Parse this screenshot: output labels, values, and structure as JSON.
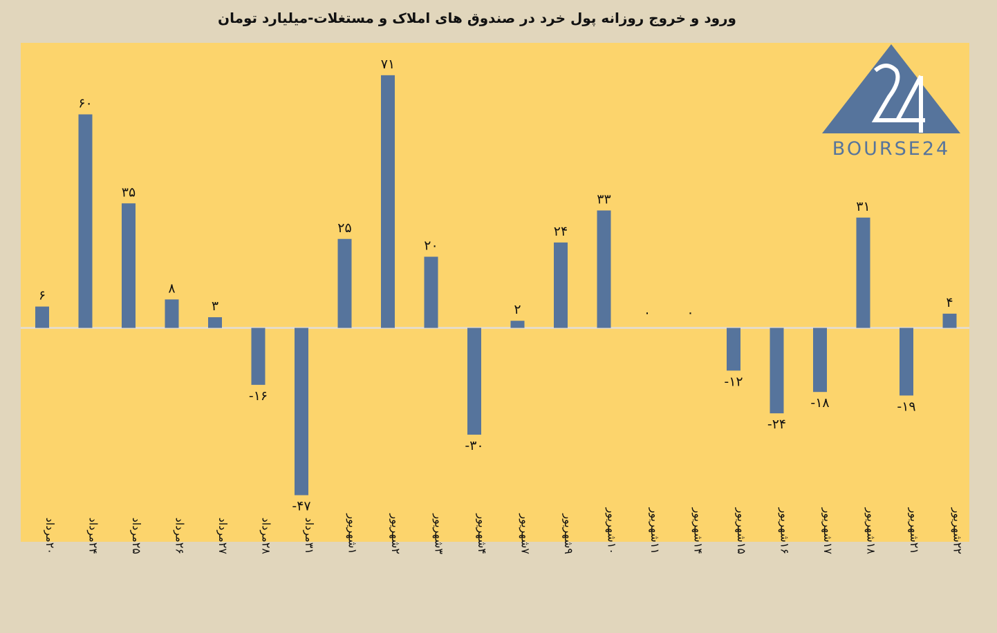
{
  "chart_data": {
    "type": "bar",
    "title": "ورود و خروج روزانه پول خرد در صندوق های املاک و مستغلات-میلیارد تومان",
    "categories": [
      "۲۰مرداد",
      "۲۴مرداد",
      "۲۵مرداد",
      "۲۶مرداد",
      "۲۷مرداد",
      "۲۸مرداد",
      "۳۱مرداد",
      "۱شهریور",
      "۲شهریور",
      "۳شهریور",
      "۴شهریور",
      "۷شهریور",
      "۹شهریور",
      "۱۰شهریور",
      "۱۱شهریور",
      "۱۴شهریور",
      "۱۵شهریور",
      "۱۶شهریور",
      "۱۷شهریور",
      "۱۸شهریور",
      "۲۱شهریور",
      "۲۲شهریور"
    ],
    "values": [
      6,
      60,
      35,
      8,
      3,
      -16,
      -47,
      25,
      71,
      20,
      -30,
      2,
      24,
      33,
      0,
      0,
      -12,
      -24,
      -18,
      31,
      -19,
      4
    ],
    "value_labels": [
      "۶",
      "۶۰",
      "۳۵",
      "۸",
      "۳",
      "-۱۶",
      "-۴۷",
      "۲۵",
      "۷۱",
      "۲۰",
      "-۳۰",
      "۲",
      "۲۴",
      "۳۳",
      "۰",
      "۰",
      "-۱۲",
      "-۲۴",
      "-۱۸",
      "۳۱",
      "-۱۹",
      "۴"
    ],
    "xlabel": "",
    "ylabel": "",
    "ylim": [
      -60,
      78
    ],
    "grid": false,
    "legend": "none",
    "colors": {
      "bar": "#56749c",
      "plot_background": "#fcd46c",
      "page_background": "#e1d6bc"
    }
  },
  "logo": {
    "text": "BOURSE24",
    "mark": "24",
    "color": "#56749c"
  }
}
